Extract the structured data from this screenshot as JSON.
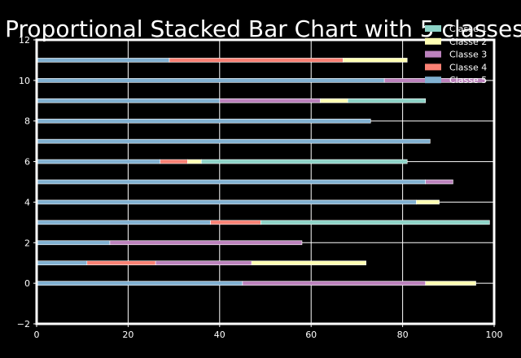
{
  "chart_data": {
    "type": "bar",
    "orientation": "horizontal",
    "stacked": true,
    "title": "Proportional Stacked Bar Chart with 5 classes",
    "xlabel": "",
    "ylabel": "",
    "xlim": [
      0,
      100
    ],
    "ylim": [
      -2,
      12
    ],
    "xticks": [
      "0",
      "20",
      "40",
      "60",
      "80",
      "100"
    ],
    "yticks": [
      "−2",
      "0",
      "2",
      "4",
      "6",
      "8",
      "10",
      "12"
    ],
    "grid": true,
    "legend_position": "top-right",
    "categories": [
      0,
      1,
      2,
      3,
      4,
      5,
      6,
      7,
      8,
      9,
      10,
      11
    ],
    "series": [
      {
        "name": "Classe 5",
        "color": "#81b1d2",
        "values": [
          45,
          11,
          16,
          38,
          83,
          85,
          27,
          86,
          73,
          40,
          76,
          29
        ]
      },
      {
        "name": "Classe 4",
        "color": "#fa8174",
        "values": [
          0,
          15,
          0,
          11,
          0,
          0,
          6,
          0,
          0,
          0,
          0,
          38
        ]
      },
      {
        "name": "Classe 3",
        "color": "#bc82bd",
        "values": [
          40,
          21,
          42,
          0,
          0,
          6,
          0,
          0,
          0,
          22,
          22,
          0
        ]
      },
      {
        "name": "Classe 2",
        "color": "#ffffb3",
        "values": [
          11,
          25,
          0,
          0,
          5,
          0,
          3,
          0,
          0,
          6,
          0,
          14
        ]
      },
      {
        "name": "Classe 1",
        "color": "#8dd3c7",
        "values": [
          0,
          0,
          0,
          50,
          0,
          0,
          45,
          0,
          0,
          17,
          0,
          0
        ]
      }
    ],
    "legend_order": [
      "Classe 1",
      "Classe 2",
      "Classe 3",
      "Classe 4",
      "Classe 5"
    ]
  }
}
